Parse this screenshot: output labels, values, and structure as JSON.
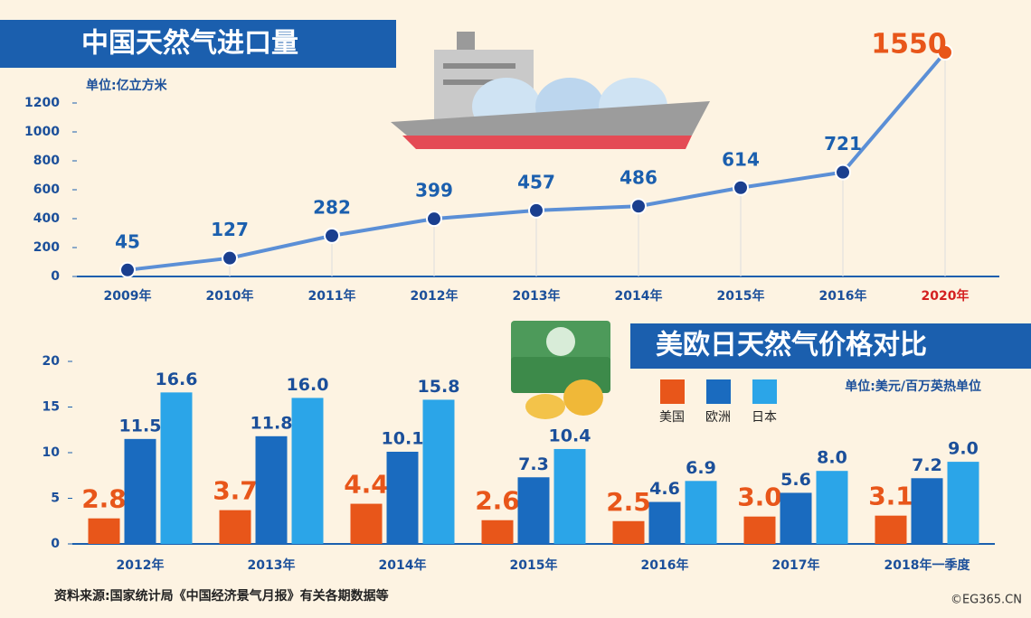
{
  "chart_data": [
    {
      "type": "line",
      "title": "中国天然气进口量",
      "subtitle": "单位:亿立方米",
      "categories": [
        "2009年",
        "2010年",
        "2011年",
        "2012年",
        "2013年",
        "2014年",
        "2015年",
        "2016年",
        "2020年"
      ],
      "values": [
        45,
        127,
        282,
        399,
        457,
        486,
        614,
        721,
        1550
      ],
      "color": "#5b8fd6",
      "ylim": [
        0,
        1200
      ],
      "yticks": [
        0,
        200,
        400,
        600,
        800,
        1000,
        1200
      ],
      "grid": true
    },
    {
      "type": "bar",
      "title": "美欧日天然气价格对比",
      "subtitle": "单位:美元/百万英热单位",
      "categories": [
        "2012年",
        "2013年",
        "2014年",
        "2015年",
        "2016年",
        "2017年",
        "2018年一季度"
      ],
      "series": [
        {
          "name": "美国",
          "color": "#e8561a",
          "values": [
            2.8,
            3.7,
            4.4,
            2.6,
            2.5,
            3.0,
            3.1
          ],
          "value_labels": [
            "2.8",
            "3.7",
            "4.4",
            "2.6",
            "2.5",
            "3.0",
            "3.1"
          ]
        },
        {
          "name": "欧洲",
          "color": "#1a6bbf",
          "values": [
            11.5,
            11.8,
            10.1,
            7.3,
            4.6,
            5.6,
            7.2
          ],
          "value_labels": [
            "11.5",
            "11.8",
            "10.1",
            "7.3",
            "4.6",
            "5.6",
            "7.2"
          ]
        },
        {
          "name": "日本",
          "color": "#2ba5e8",
          "values": [
            16.6,
            16.0,
            15.8,
            10.4,
            6.9,
            8.0,
            9.0
          ],
          "value_labels": [
            "16.6",
            "16.0",
            "15.8",
            "10.4",
            "6.9",
            "8.0",
            "9.0"
          ]
        }
      ],
      "ylim": [
        0,
        20
      ],
      "yticks": [
        0,
        5,
        10,
        15,
        20
      ],
      "legend": "top-right"
    }
  ],
  "source": "资料来源:国家统计局《中国经济景气月报》有关各期数据等",
  "credit": "©EG365.CN"
}
